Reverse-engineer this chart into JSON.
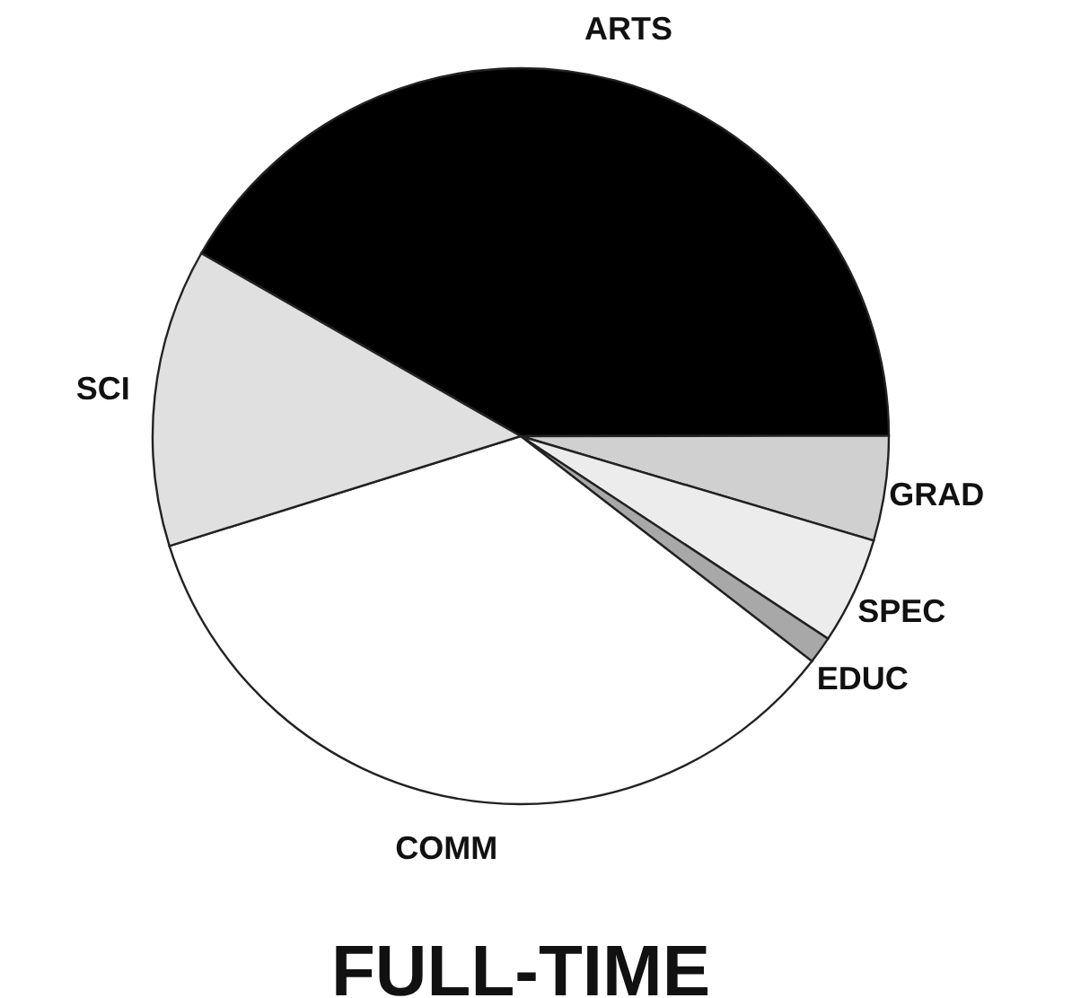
{
  "chart_data": {
    "type": "pie",
    "title": "FULL-TIME",
    "categories": [
      "ARTS",
      "GRAD",
      "SPEC",
      "EDUC",
      "COMM",
      "SCI"
    ],
    "values": [
      41.7,
      4.6,
      4.7,
      1.2,
      34.7,
      13.1
    ],
    "colors": [
      "#000000",
      "#d0d0d0",
      "#ececec",
      "#a8a8a8",
      "#ffffff",
      "#e0e0e0"
    ],
    "legend": false
  }
}
